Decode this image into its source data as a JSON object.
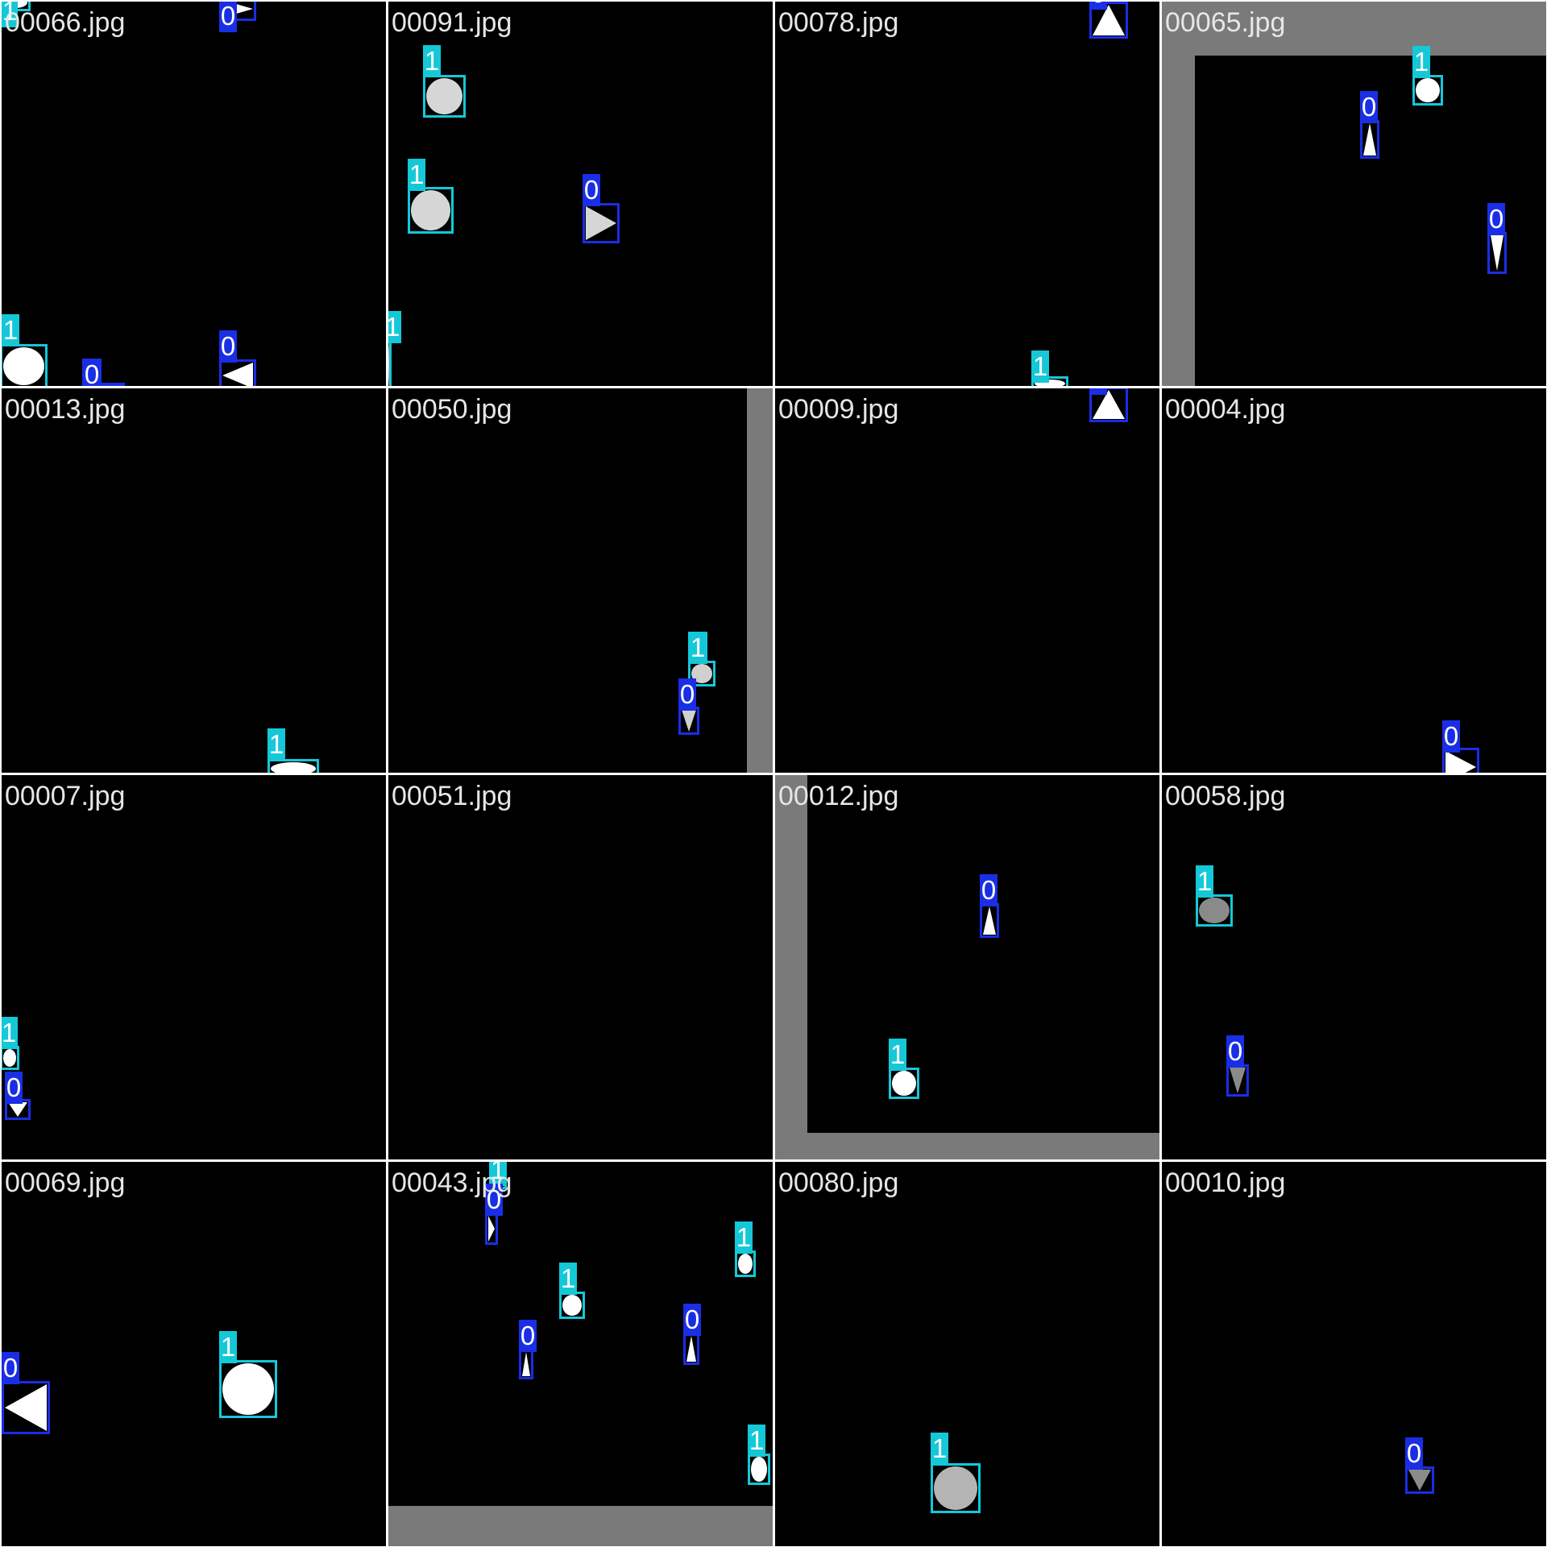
{
  "colors": {
    "background": "#000000",
    "separator": "#ffffff",
    "wall": "#7a7a7a",
    "class_0": "#1a2ee6",
    "class_1": "#14c8d8",
    "filename_text": "#e6e6e6"
  },
  "class_labels": {
    "0": "0",
    "1": "1"
  },
  "tiles": [
    {
      "filename": "00066.jpg",
      "detections": [
        {
          "cls": "1",
          "shape": "circle",
          "fill": "#ffffff"
        },
        {
          "cls": "0",
          "shape": "triangle-right",
          "fill": "#ffffff"
        },
        {
          "cls": "1",
          "shape": "circle",
          "fill": "#ffffff"
        },
        {
          "cls": "0",
          "shape": "triangle-left",
          "fill": "#ffffff"
        },
        {
          "cls": "0",
          "shape": "triangle-left",
          "fill": "#ffffff"
        }
      ]
    },
    {
      "filename": "00091.jpg",
      "detections": [
        {
          "cls": "1",
          "shape": "circle",
          "fill": "#d6d6d6"
        },
        {
          "cls": "1",
          "shape": "circle",
          "fill": "#d6d6d6"
        },
        {
          "cls": "0",
          "shape": "triangle-right",
          "fill": "#d6d6d6"
        },
        {
          "cls": "1",
          "shape": "circle",
          "fill": "#d6d6d6"
        }
      ]
    },
    {
      "filename": "00078.jpg",
      "detections": [
        {
          "cls": "1",
          "shape": "circle",
          "fill": "#ffffff"
        },
        {
          "cls": "0",
          "shape": "triangle-up",
          "fill": "#ffffff"
        }
      ]
    },
    {
      "filename": "00065.jpg",
      "detections": [
        {
          "cls": "1",
          "shape": "circle",
          "fill": "#ffffff"
        },
        {
          "cls": "0",
          "shape": "triangle-up",
          "fill": "#ffffff"
        },
        {
          "cls": "0",
          "shape": "triangle-down",
          "fill": "#ffffff"
        }
      ]
    },
    {
      "filename": "00013.jpg",
      "detections": [
        {
          "cls": "1",
          "shape": "circle",
          "fill": "#ffffff"
        }
      ]
    },
    {
      "filename": "00050.jpg",
      "detections": [
        {
          "cls": "1",
          "shape": "circle",
          "fill": "#d0d0d0"
        },
        {
          "cls": "0",
          "shape": "triangle-down",
          "fill": "#d0d0d0"
        }
      ]
    },
    {
      "filename": "00009.jpg",
      "detections": [
        {
          "cls": "0",
          "shape": "triangle-up",
          "fill": "#ffffff"
        }
      ]
    },
    {
      "filename": "00004.jpg",
      "detections": [
        {
          "cls": "0",
          "shape": "triangle-right",
          "fill": "#ffffff"
        }
      ]
    },
    {
      "filename": "00007.jpg",
      "detections": [
        {
          "cls": "1",
          "shape": "circle",
          "fill": "#ffffff"
        },
        {
          "cls": "0",
          "shape": "triangle-down",
          "fill": "#ffffff"
        }
      ]
    },
    {
      "filename": "00051.jpg",
      "detections": []
    },
    {
      "filename": "00012.jpg",
      "detections": [
        {
          "cls": "0",
          "shape": "triangle-up",
          "fill": "#ffffff"
        },
        {
          "cls": "1",
          "shape": "circle",
          "fill": "#ffffff"
        }
      ]
    },
    {
      "filename": "00058.jpg",
      "detections": [
        {
          "cls": "1",
          "shape": "circle",
          "fill": "#8a8a8a"
        },
        {
          "cls": "0",
          "shape": "triangle-down",
          "fill": "#8a8a8a"
        }
      ]
    },
    {
      "filename": "00069.jpg",
      "detections": [
        {
          "cls": "0",
          "shape": "triangle-left",
          "fill": "#ffffff"
        },
        {
          "cls": "1",
          "shape": "circle",
          "fill": "#ffffff"
        }
      ]
    },
    {
      "filename": "00043.jpg",
      "detections": [
        {
          "cls": "1",
          "shape": "circle",
          "fill": "#ffffff"
        },
        {
          "cls": "0",
          "shape": "triangle-right",
          "fill": "#ffffff"
        },
        {
          "cls": "1",
          "shape": "circle",
          "fill": "#ffffff"
        },
        {
          "cls": "1",
          "shape": "circle",
          "fill": "#ffffff"
        },
        {
          "cls": "0",
          "shape": "triangle-up",
          "fill": "#ffffff"
        },
        {
          "cls": "0",
          "shape": "triangle-up",
          "fill": "#ffffff"
        },
        {
          "cls": "1",
          "shape": "circle",
          "fill": "#ffffff"
        }
      ]
    },
    {
      "filename": "00080.jpg",
      "detections": [
        {
          "cls": "1",
          "shape": "circle",
          "fill": "#b4b4b4"
        }
      ]
    },
    {
      "filename": "00010.jpg",
      "detections": [
        {
          "cls": "0",
          "shape": "triangle-down",
          "fill": "#8a8a8a"
        }
      ]
    }
  ]
}
